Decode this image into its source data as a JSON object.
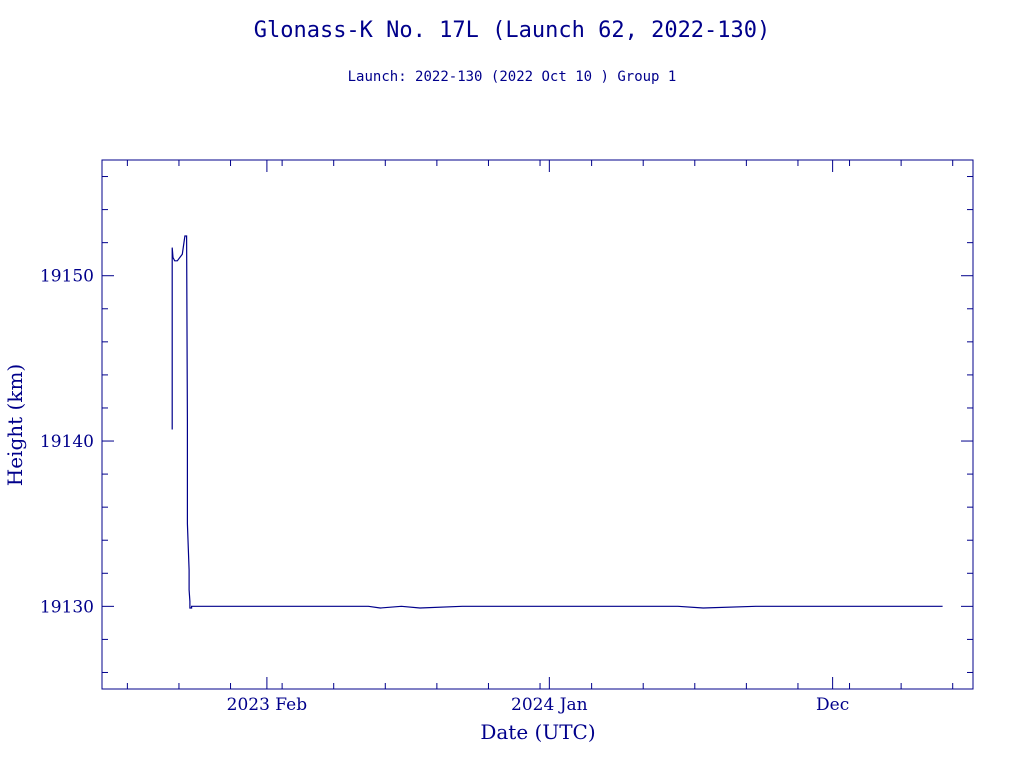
{
  "chart_data": {
    "type": "line",
    "title": "Glonass-K No. 17L (Launch 62, 2022-130)",
    "subtitle": "Launch: 2022-130  (2022 Oct 10 )  Group 1",
    "xlabel": "Date (UTC)",
    "ylabel": "Height (km)",
    "ylim": [
      19125,
      19157
    ],
    "xlim": [
      "2022-07-21",
      "2025-05-16"
    ],
    "y_ticks": [
      19130,
      19140,
      19150
    ],
    "y_tick_labels": [
      "19130",
      "19140",
      "19150"
    ],
    "x_ticks": [
      "2023-02-01",
      "2024-01-01",
      "2024-12-01"
    ],
    "x_tick_labels": [
      "2023 Feb",
      "2024 Jan",
      "Dec"
    ],
    "grid": false,
    "line_color": "#00008b",
    "series": [
      {
        "x": [
          "2022-10-12",
          "2022-10-12",
          "2022-10-13",
          "2022-10-15",
          "2022-10-18",
          "2022-10-24",
          "2022-10-27",
          "2022-10-29",
          "2022-10-30",
          "2022-10-30",
          "2022-11-01",
          "2022-11-01",
          "2022-11-02",
          "2022-11-02",
          "2022-11-03",
          "2022-11-04",
          "2022-11-04",
          "2022-11-07",
          "2022-12-01",
          "2022-12-15",
          "2023-01-01",
          "2023-03-01",
          "2023-06-01",
          "2023-06-15",
          "2023-07-10",
          "2023-08-01",
          "2023-09-20",
          "2023-10-15",
          "2024-01-01",
          "2024-03-01",
          "2024-06-01",
          "2024-07-01",
          "2024-09-01",
          "2024-11-01",
          "2024-12-01",
          "2025-03-01",
          "2025-04-10"
        ],
        "y": [
          19140.7,
          19151.7,
          19151.1,
          19150.9,
          19150.9,
          19151.3,
          19152.4,
          19152.4,
          19141.2,
          19135.0,
          19132.2,
          19131.0,
          19130.3,
          19129.9,
          19129.9,
          19129.9,
          19130.0,
          19130.0,
          19130.0,
          19130.0,
          19130.0,
          19130.0,
          19130.0,
          19129.9,
          19130.0,
          19129.9,
          19130.0,
          19130.0,
          19130.0,
          19130.0,
          19130.0,
          19129.9,
          19130.0,
          19130.0,
          19130.0,
          19130.0,
          19130.0
        ]
      }
    ]
  }
}
